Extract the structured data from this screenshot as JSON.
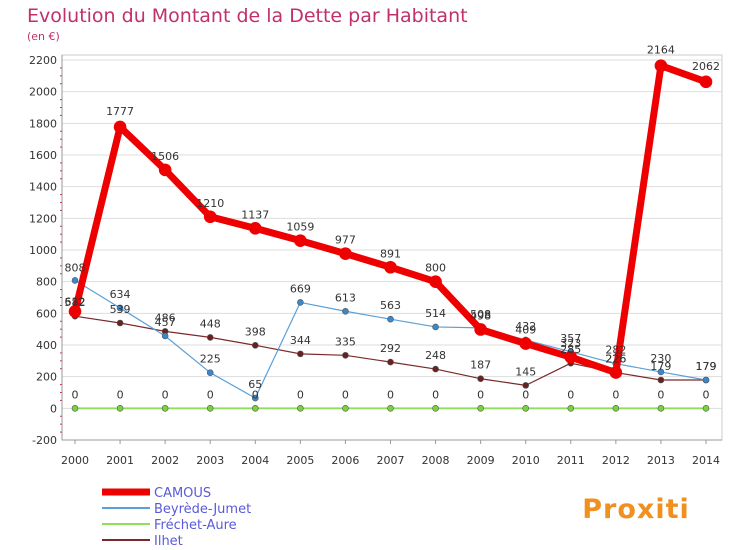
{
  "chart_data": {
    "type": "line",
    "title": "Evolution du Montant de la Dette par Habitant",
    "subtitle": "(en €)",
    "x": [
      "2000",
      "2001",
      "2002",
      "2003",
      "2004",
      "2005",
      "2006",
      "2007",
      "2008",
      "2009",
      "2010",
      "2011",
      "2012",
      "2013",
      "2014"
    ],
    "ylim": [
      -200,
      2200
    ],
    "yticks": [
      "-200",
      "0",
      "200",
      "400",
      "600",
      "800",
      "1000",
      "1200",
      "1400",
      "1600",
      "1800",
      "2000",
      "2200"
    ],
    "series": [
      {
        "name": "CAMOUS",
        "color": "#ee0000",
        "values": [
          612,
          1777,
          1506,
          1210,
          1137,
          1059,
          977,
          891,
          800,
          498,
          409,
          323,
          226,
          2164,
          2062
        ],
        "labels": [
          "612",
          "1777",
          "1506",
          "1210",
          "1137",
          "1059",
          "977",
          "891",
          "800",
          "498",
          "409",
          "323",
          "226",
          "2164",
          "2062"
        ]
      },
      {
        "name": "Beyrède-Jumet",
        "color": "#5aa0d8",
        "values": [
          808,
          634,
          457,
          225,
          65,
          669,
          613,
          563,
          514,
          508,
          432,
          357,
          282,
          230,
          179
        ],
        "labels": [
          "808",
          "634",
          "457",
          "225",
          "65",
          "669",
          "613",
          "563",
          "514",
          "508",
          "432",
          "357",
          "282",
          "230",
          "179"
        ]
      },
      {
        "name": "Fréchet-Aure",
        "color": "#8ee05a",
        "values": [
          0,
          0,
          0,
          0,
          0,
          0,
          0,
          0,
          0,
          0,
          0,
          0,
          0,
          0,
          0
        ],
        "labels": [
          "0",
          "0",
          "0",
          "0",
          "0",
          "0",
          "0",
          "0",
          "0",
          "0",
          "0",
          "0",
          "0",
          "0",
          "0"
        ]
      },
      {
        "name": "Ilhet",
        "color": "#7a2a2a",
        "values": [
          582,
          539,
          486,
          448,
          398,
          344,
          335,
          292,
          248,
          187,
          145,
          285,
          226,
          179,
          179
        ],
        "labels": [
          "582",
          "539",
          "486",
          "448",
          "398",
          "344",
          "335",
          "292",
          "248",
          "187",
          "145",
          "285",
          "226",
          "179",
          "179"
        ]
      }
    ],
    "legend_position": "bottom-left"
  },
  "brand": {
    "text": "Proxiti"
  },
  "colors": {
    "title": "#c0306a",
    "legend_text": "#5a5ad8",
    "grid": "#dddddd"
  }
}
